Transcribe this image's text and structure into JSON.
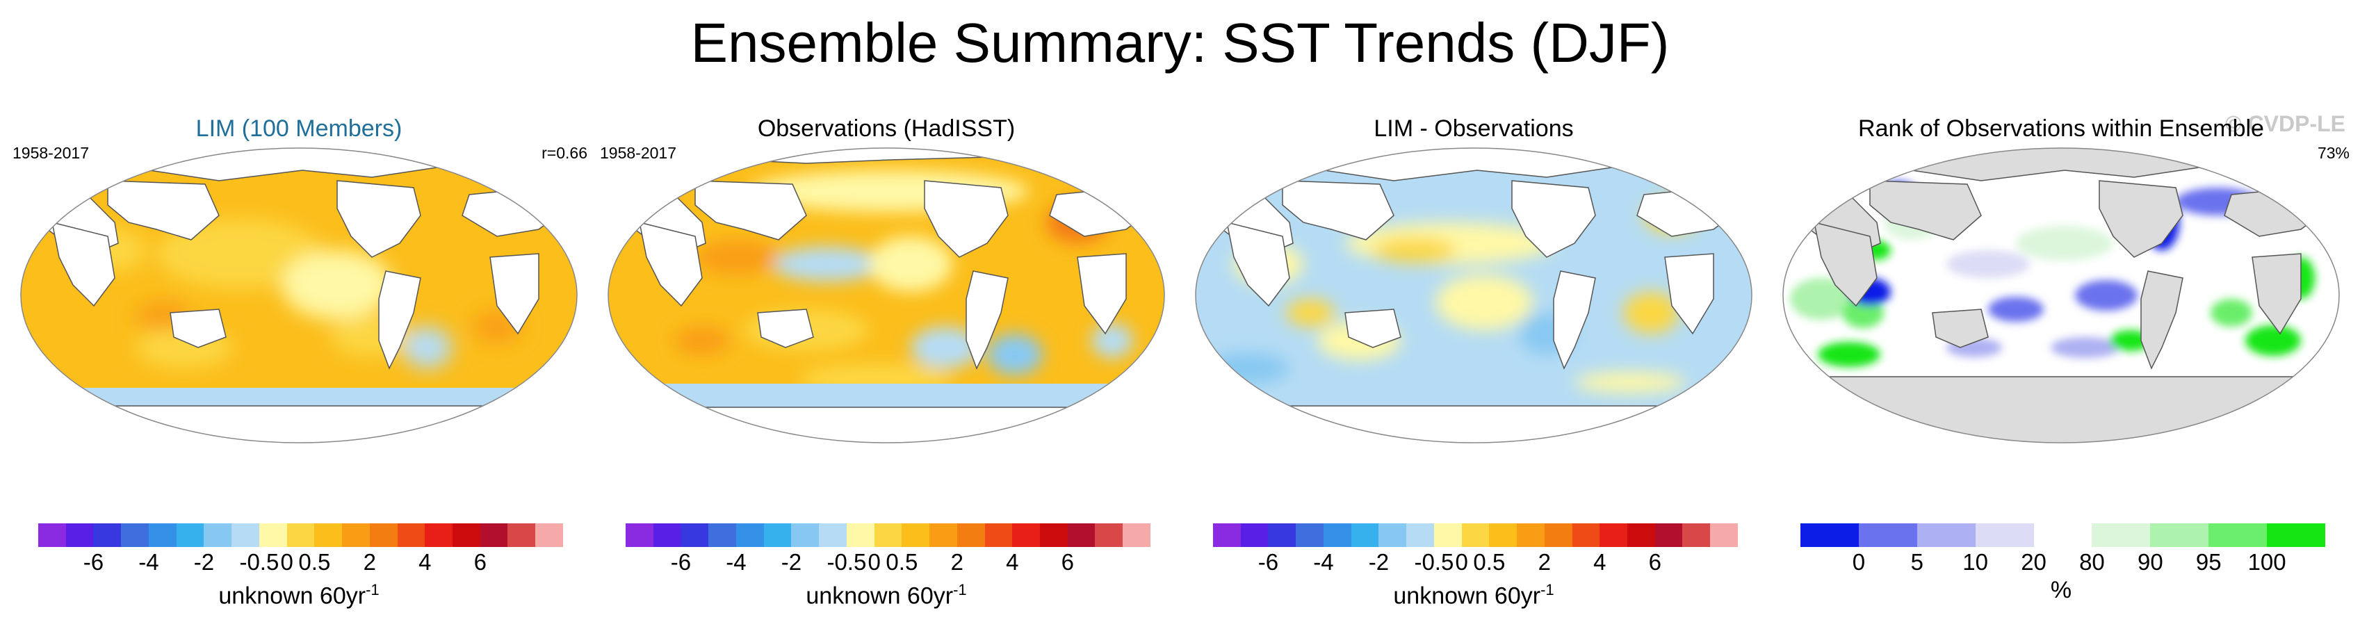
{
  "title": "Ensemble Summary: SST Trends (DJF)",
  "watermark": "© CVDP-LE",
  "colors": {
    "ocean_default": "#f8c01c",
    "land": "#ffffff",
    "land_rank": "#dcdcdc",
    "coast": "#555555",
    "panel_title_blue": "#1f6f9a"
  },
  "trend_colorbar": {
    "colors": [
      "#8a2be2",
      "#5a1fe6",
      "#3838e0",
      "#3f6fdf",
      "#3590e8",
      "#36b1ee",
      "#87c8f2",
      "#b5dcf4",
      "#fff8a6",
      "#fcd743",
      "#fbbe1b",
      "#f99e14",
      "#f47d12",
      "#ef4b17",
      "#e81f17",
      "#cc0c0c",
      "#b10f2c",
      "#d84848",
      "#f6a9a9"
    ],
    "tick_labels": [
      "-6",
      "-4",
      "-2",
      "-0.5",
      "0",
      "0.5",
      "2",
      "4",
      "6"
    ],
    "tick_boundary_index": [
      2,
      4,
      6,
      8,
      9,
      10,
      12,
      14,
      16
    ],
    "unit": "unknown 60yr",
    "unit_sup": "-1"
  },
  "rank_colorbar": {
    "colors": [
      "#0b1de6",
      "#6a72ee",
      "#adb0f2",
      "#dcdcf6",
      "#ffffff",
      "#dcf6dc",
      "#adf2ad",
      "#6bee6b",
      "#13e613"
    ],
    "tick_labels": [
      "0",
      "5",
      "10",
      "20",
      "80",
      "90",
      "95",
      "100"
    ],
    "tick_boundary_index": [
      1,
      2,
      3,
      4,
      5,
      6,
      7,
      8
    ],
    "unit": "%"
  },
  "panels": [
    {
      "title": "LIM (100 Members)",
      "period": "1958-2017",
      "stat": "r=0.66"
    },
    {
      "title": "Observations (HadISST)",
      "period": "1958-2017",
      "stat": ""
    },
    {
      "title": "LIM - Observations",
      "period": "",
      "stat": ""
    },
    {
      "title": "Rank of Observations within Ensemble",
      "period": "",
      "stat": "73%"
    }
  ],
  "chart_data": [
    {
      "type": "heatmap",
      "title": "LIM (100 Members)",
      "period": "1958-2017",
      "annotation": "r=0.66",
      "colorbar_levels": [
        -6,
        -4,
        -2,
        -0.5,
        0,
        0.5,
        2,
        4,
        6
      ],
      "colorbar_label": "unknown 60yr-1",
      "dominant_value_range": [
        0.5,
        2
      ]
    },
    {
      "type": "heatmap",
      "title": "Observations (HadISST)",
      "period": "1958-2017",
      "colorbar_levels": [
        -6,
        -4,
        -2,
        -0.5,
        0,
        0.5,
        2,
        4,
        6
      ],
      "colorbar_label": "unknown 60yr-1",
      "dominant_value_range": [
        0.5,
        2
      ]
    },
    {
      "type": "heatmap",
      "title": "LIM - Observations",
      "colorbar_levels": [
        -6,
        -4,
        -2,
        -0.5,
        0,
        0.5,
        2,
        4,
        6
      ],
      "colorbar_label": "unknown 60yr-1",
      "dominant_value_range": [
        -0.5,
        0.5
      ]
    },
    {
      "type": "heatmap",
      "title": "Rank of Observations within Ensemble",
      "annotation": "73%",
      "colorbar_levels": [
        0,
        5,
        10,
        20,
        80,
        90,
        95,
        100
      ],
      "colorbar_label": "%",
      "dominant_value_range": [
        20,
        80
      ]
    }
  ]
}
